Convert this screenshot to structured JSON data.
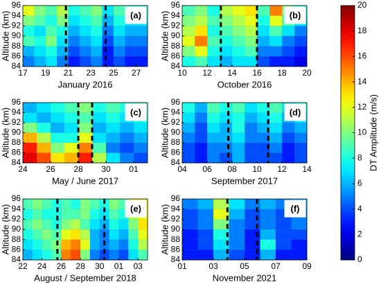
{
  "chart_data": [
    {
      "type": "heatmap",
      "panel_label": "(a)",
      "xlabel": "January 2016",
      "ylabel": "Altitude (km)",
      "xlim": [
        17,
        28
      ],
      "xticks": [
        17,
        19,
        21,
        23,
        25,
        27
      ],
      "ylim": [
        84,
        96
      ],
      "yticks": [
        84,
        86,
        88,
        90,
        92,
        94,
        96
      ],
      "grid": true,
      "x": [
        17.5,
        18.5,
        19.5,
        20.5,
        21.5,
        22.5,
        23.5,
        24.5,
        25.5,
        26.5,
        27.5
      ],
      "y": [
        95,
        93,
        91,
        89,
        87,
        85
      ],
      "values": [
        [
          12,
          10,
          9,
          11,
          8,
          9,
          10,
          7,
          9,
          8,
          8
        ],
        [
          10,
          9,
          8,
          10,
          7,
          8,
          9,
          6,
          8,
          7,
          7
        ],
        [
          8,
          7,
          9,
          8,
          6,
          7,
          8,
          5,
          7,
          6,
          6
        ],
        [
          9,
          8,
          10,
          7,
          5,
          6,
          7,
          4,
          6,
          5,
          5
        ],
        [
          6,
          7,
          8,
          6,
          4,
          5,
          6,
          3,
          5,
          4,
          4
        ],
        [
          5,
          6,
          7,
          5,
          3,
          4,
          5,
          3,
          4,
          3,
          3
        ]
      ],
      "dashed_lines": [
        20.8,
        24.3
      ]
    },
    {
      "type": "heatmap",
      "panel_label": "(b)",
      "xlabel": "October 2016",
      "ylabel": "Altitude (km)",
      "xlim": [
        10,
        20
      ],
      "xticks": [
        10,
        12,
        14,
        16,
        18,
        20
      ],
      "ylim": [
        84,
        96
      ],
      "yticks": [
        84,
        86,
        88,
        90,
        92,
        94,
        96
      ],
      "grid": true,
      "x": [
        10.5,
        11.5,
        12.5,
        13.5,
        14.5,
        15.5,
        16.5,
        17.5,
        18.5,
        19.5
      ],
      "y": [
        95,
        93,
        91,
        89,
        87,
        85
      ],
      "values": [
        [
          9,
          10,
          8,
          11,
          12,
          13,
          9,
          15,
          10,
          8
        ],
        [
          10,
          11,
          9,
          10,
          11,
          12,
          8,
          12,
          9,
          7
        ],
        [
          11,
          13,
          8,
          9,
          10,
          11,
          7,
          9,
          7,
          5
        ],
        [
          12,
          15,
          9,
          8,
          9,
          10,
          6,
          7,
          5,
          4
        ],
        [
          10,
          12,
          8,
          7,
          8,
          9,
          5,
          5,
          4,
          3
        ],
        [
          8,
          9,
          7,
          6,
          7,
          7,
          4,
          3,
          3,
          2
        ]
      ],
      "dashed_lines": [
        13.1,
        16.0
      ]
    },
    {
      "type": "heatmap",
      "panel_label": "(c)",
      "xlabel": "May / June 2017",
      "ylabel": "Altitude (km)",
      "xlim": [
        24,
        33
      ],
      "xticks": [
        24,
        26,
        28,
        30,
        {
          "value": 32,
          "label": "01"
        }
      ],
      "ylim": [
        84,
        96
      ],
      "yticks": [
        84,
        86,
        88,
        90,
        92,
        94,
        96
      ],
      "grid": true,
      "x": [
        24.5,
        25.5,
        26.5,
        27.5,
        28.5,
        29.5,
        30.5,
        31.5,
        32.5
      ],
      "y": [
        95,
        93,
        91,
        89,
        87,
        85
      ],
      "values": [
        [
          6,
          7,
          8,
          9,
          10,
          8,
          9,
          8,
          9
        ],
        [
          7,
          6,
          7,
          8,
          9,
          7,
          8,
          7,
          8
        ],
        [
          10,
          8,
          6,
          7,
          10,
          6,
          7,
          6,
          7
        ],
        [
          14,
          11,
          8,
          8,
          12,
          7,
          6,
          5,
          6
        ],
        [
          17,
          14,
          10,
          12,
          15,
          9,
          5,
          4,
          5
        ],
        [
          18,
          16,
          13,
          14,
          17,
          11,
          7,
          5,
          4
        ]
      ],
      "dashed_lines": [
        28.0,
        29.0
      ]
    },
    {
      "type": "heatmap",
      "panel_label": "(d)",
      "xlabel": "September 2017",
      "ylabel": "Altitude (km)",
      "xlim": [
        4,
        14
      ],
      "xticks": [
        {
          "value": 4,
          "label": "04"
        },
        {
          "value": 6,
          "label": "06"
        },
        {
          "value": 8,
          "label": "08"
        },
        10,
        12,
        14
      ],
      "ylim": [
        84,
        96
      ],
      "yticks": [
        84,
        86,
        88,
        90,
        92,
        94,
        96
      ],
      "grid": true,
      "x": [
        4.5,
        5.5,
        6.5,
        7.5,
        8.5,
        9.5,
        10.5,
        11.5,
        12.5,
        13.5
      ],
      "y": [
        95,
        93,
        91,
        89,
        87,
        85
      ],
      "values": [
        [
          8,
          6,
          9,
          8,
          9,
          7,
          8,
          9,
          7,
          8
        ],
        [
          7,
          5,
          8,
          7,
          8,
          6,
          7,
          8,
          6,
          7
        ],
        [
          6,
          4,
          7,
          6,
          8,
          5,
          6,
          7,
          5,
          6
        ],
        [
          5,
          4,
          6,
          6,
          7,
          5,
          5,
          6,
          4,
          5
        ],
        [
          4,
          3,
          5,
          5,
          6,
          4,
          4,
          5,
          3,
          4
        ],
        [
          4,
          3,
          5,
          4,
          6,
          4,
          4,
          4,
          3,
          4
        ]
      ],
      "dashed_lines": [
        7.7,
        10.9
      ]
    },
    {
      "type": "heatmap",
      "panel_label": "(e)",
      "xlabel": "August / September 2018",
      "ylabel": "Altitude (km)",
      "xlim": [
        22,
        35
      ],
      "xticks": [
        22,
        24,
        26,
        28,
        30,
        {
          "value": 32,
          "label": "01"
        },
        {
          "value": 34,
          "label": "03"
        }
      ],
      "ylim": [
        84,
        96
      ],
      "yticks": [
        84,
        86,
        88,
        90,
        92,
        94,
        96
      ],
      "grid": true,
      "x": [
        22.5,
        23.5,
        24.5,
        25.5,
        26.5,
        27.5,
        28.5,
        29.5,
        30.5,
        31.5,
        32.5,
        33.5,
        34.5
      ],
      "y": [
        95,
        93,
        91,
        89,
        87,
        85
      ],
      "values": [
        [
          9,
          10,
          9,
          8,
          9,
          8,
          10,
          9,
          8,
          10,
          9,
          12,
          13
        ],
        [
          8,
          9,
          8,
          8,
          9,
          9,
          10,
          8,
          7,
          9,
          8,
          11,
          12
        ],
        [
          9,
          10,
          9,
          8,
          10,
          11,
          9,
          7,
          6,
          8,
          7,
          10,
          13
        ],
        [
          8,
          9,
          10,
          9,
          12,
          13,
          11,
          6,
          5,
          7,
          6,
          9,
          12
        ],
        [
          7,
          8,
          9,
          10,
          14,
          15,
          12,
          6,
          5,
          6,
          5,
          8,
          11
        ],
        [
          6,
          7,
          8,
          9,
          15,
          16,
          10,
          5,
          4,
          5,
          4,
          7,
          9
        ]
      ],
      "dashed_lines": [
        25.6,
        30.5
      ]
    },
    {
      "type": "heatmap",
      "panel_label": "(f)",
      "xlabel": "November 2021",
      "ylabel": "Altitude (km)",
      "xlim": [
        1,
        9
      ],
      "xticks": [
        {
          "value": 1,
          "label": "01"
        },
        {
          "value": 3,
          "label": "03"
        },
        {
          "value": 5,
          "label": "05"
        },
        {
          "value": 7,
          "label": "07"
        },
        {
          "value": 9,
          "label": "09"
        }
      ],
      "ylim": [
        84,
        96
      ],
      "yticks": [
        84,
        86,
        88,
        90,
        92,
        94,
        96
      ],
      "grid": true,
      "x": [
        1.5,
        2.5,
        3.5,
        4.5,
        5.5,
        6.5,
        7.5,
        8.5
      ],
      "y": [
        95,
        93,
        91,
        89,
        87,
        85
      ],
      "values": [
        [
          5,
          6,
          11,
          7,
          5,
          6,
          5,
          6
        ],
        [
          4,
          5,
          12,
          6,
          4,
          5,
          4,
          5
        ],
        [
          4,
          5,
          10,
          5,
          4,
          5,
          4,
          5
        ],
        [
          3,
          4,
          8,
          5,
          3,
          6,
          4,
          4
        ],
        [
          3,
          4,
          7,
          5,
          3,
          8,
          4,
          3
        ],
        [
          3,
          3,
          6,
          4,
          3,
          6,
          3,
          3
        ]
      ],
      "dashed_lines": [
        3.9,
        5.8
      ]
    }
  ],
  "colorbar": {
    "label": "DT Amplitude (m/s)",
    "colormap": "jet",
    "clim": [
      0,
      20
    ],
    "ticks": [
      0,
      2,
      4,
      6,
      8,
      10,
      12,
      14,
      16,
      18,
      20
    ]
  }
}
